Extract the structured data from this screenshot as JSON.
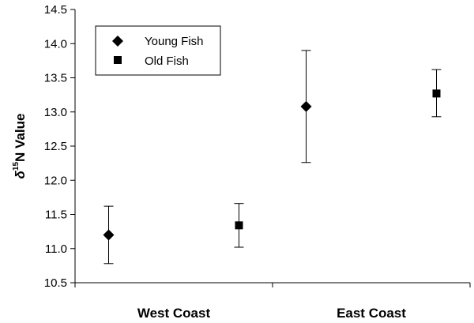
{
  "chart_data": {
    "type": "scatter",
    "categories": [
      "West Coast",
      "East Coast"
    ],
    "ylabel": {
      "delta": "δ",
      "superscript": "15",
      "rest": "N Value"
    },
    "ylim": [
      10.5,
      14.5
    ],
    "yticks": [
      "10.5",
      "11.0",
      "11.5",
      "12.0",
      "12.5",
      "13.0",
      "13.5",
      "14.0",
      "14.5"
    ],
    "legend_position": "top-left",
    "series": [
      {
        "name": "Young Fish",
        "marker": "diamond",
        "values": [
          11.2,
          13.08
        ],
        "error_low": [
          10.78,
          12.26
        ],
        "error_high": [
          11.62,
          13.9
        ]
      },
      {
        "name": "Old Fish",
        "marker": "square",
        "values": [
          11.34,
          13.27
        ],
        "error_low": [
          11.02,
          12.93
        ],
        "error_high": [
          11.66,
          13.62
        ]
      }
    ],
    "grid": false
  }
}
